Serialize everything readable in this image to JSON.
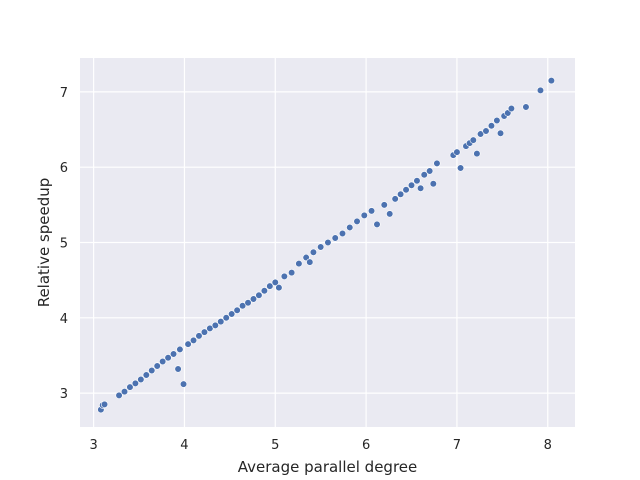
{
  "chart_data": {
    "type": "scatter",
    "title": "",
    "xlabel": "Average parallel degree",
    "ylabel": "Relative speedup",
    "xlim": [
      2.85,
      8.3
    ],
    "ylim": [
      2.55,
      7.45
    ],
    "xticks": [
      3,
      4,
      5,
      6,
      7,
      8
    ],
    "yticks": [
      3,
      4,
      5,
      6,
      7
    ],
    "grid": true,
    "colors": {
      "background": "#EAEAF2",
      "grid": "#FFFFFF",
      "point_fill": "#4C72B0",
      "point_edge": "#FFFFFF"
    },
    "series": [
      {
        "x": [
          3.08,
          3.1,
          3.12,
          3.28,
          3.34,
          3.4,
          3.46,
          3.52,
          3.58,
          3.64,
          3.7,
          3.76,
          3.82,
          3.88,
          3.93,
          3.95,
          3.99,
          4.04,
          4.1,
          4.16,
          4.22,
          4.28,
          4.34,
          4.4,
          4.46,
          4.52,
          4.58,
          4.64,
          4.7,
          4.76,
          4.82,
          4.88,
          4.94,
          5.0,
          5.04,
          5.1,
          5.18,
          5.26,
          5.34,
          5.38,
          5.42,
          5.5,
          5.58,
          5.66,
          5.74,
          5.82,
          5.9,
          5.98,
          6.06,
          6.12,
          6.2,
          6.26,
          6.32,
          6.38,
          6.44,
          6.5,
          6.56,
          6.6,
          6.64,
          6.7,
          6.74,
          6.78,
          6.96,
          7.0,
          7.04,
          7.1,
          7.14,
          7.18,
          7.22,
          7.26,
          7.32,
          7.38,
          7.44,
          7.48,
          7.52,
          7.56,
          7.6,
          7.76,
          7.92,
          8.04
        ],
        "y": [
          2.78,
          2.84,
          2.85,
          2.97,
          3.02,
          3.08,
          3.13,
          3.18,
          3.24,
          3.3,
          3.36,
          3.42,
          3.47,
          3.52,
          3.32,
          3.58,
          3.12,
          3.65,
          3.7,
          3.76,
          3.81,
          3.86,
          3.9,
          3.95,
          4.0,
          4.05,
          4.1,
          4.16,
          4.2,
          4.25,
          4.3,
          4.36,
          4.42,
          4.47,
          4.4,
          4.55,
          4.6,
          4.72,
          4.8,
          4.74,
          4.87,
          4.94,
          5.0,
          5.06,
          5.12,
          5.2,
          5.28,
          5.36,
          5.42,
          5.24,
          5.5,
          5.38,
          5.58,
          5.64,
          5.7,
          5.76,
          5.82,
          5.72,
          5.9,
          5.95,
          5.78,
          6.05,
          6.16,
          6.2,
          5.99,
          6.28,
          6.32,
          6.36,
          6.18,
          6.44,
          6.48,
          6.55,
          6.62,
          6.45,
          6.68,
          6.72,
          6.78,
          6.8,
          7.02,
          7.15
        ]
      }
    ]
  }
}
